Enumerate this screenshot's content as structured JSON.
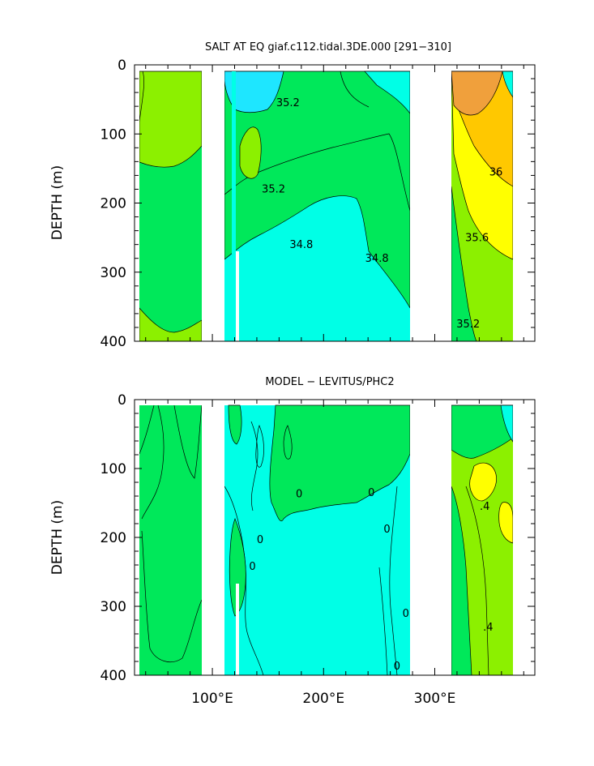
{
  "chart_data": [
    {
      "type": "heatmap",
      "title": "SALT AT EQ giaf.c112.tidal.3DE.000 [291−310]",
      "ylabel": "DEPTH (m)",
      "xlabel": "",
      "xlim": [
        30,
        390
      ],
      "ylim": [
        400,
        0
      ],
      "x_ticks": [
        100,
        200,
        300
      ],
      "x_tick_labels": [
        "100°E",
        "200°E",
        "300°E"
      ],
      "y_ticks": [
        0,
        100,
        200,
        300,
        400
      ],
      "y_tick_labels": [
        "0",
        "100",
        "200",
        "300",
        "400"
      ],
      "land_gaps": [
        [
          98,
          118
        ],
        [
          125,
          128
        ],
        [
          130,
          131
        ],
        [
          278,
          315
        ],
        [
          370,
          390
        ]
      ],
      "ocean_sections": [
        {
          "lon": [
            43,
            98
          ]
        },
        {
          "lon": [
            118,
            278
          ]
        },
        {
          "lon": [
            315,
            370
          ]
        }
      ],
      "contour_labels": [
        {
          "text": "35.2",
          "lon": 168,
          "depth": 60
        },
        {
          "text": "35.2",
          "lon": 155,
          "depth": 185
        },
        {
          "text": "34.8",
          "lon": 180,
          "depth": 265
        },
        {
          "text": "34.8",
          "lon": 248,
          "depth": 285
        },
        {
          "text": "36",
          "lon": 355,
          "depth": 160
        },
        {
          "text": "35.6",
          "lon": 338,
          "depth": 255
        },
        {
          "text": "35.2",
          "lon": 330,
          "depth": 380
        }
      ],
      "colors": {
        "fresh": "#00ffe6",
        "mid_low": "#1ee6ff",
        "mid": "#00e85a",
        "mid_high": "#8cf000",
        "high": "#ffff00",
        "higher": "#ffc800",
        "highest": "#f0a03c"
      }
    },
    {
      "type": "heatmap",
      "title": "MODEL − LEVITUS/PHC2",
      "ylabel": "DEPTH (m)",
      "xlabel": "",
      "xlim": [
        30,
        390
      ],
      "ylim": [
        400,
        0
      ],
      "x_ticks": [
        100,
        200,
        300
      ],
      "x_tick_labels": [
        "100°E",
        "200°E",
        "300°E"
      ],
      "y_ticks": [
        0,
        100,
        200,
        300,
        400
      ],
      "y_tick_labels": [
        "0",
        "100",
        "200",
        "300",
        "400"
      ],
      "land_gaps": [
        [
          98,
          118
        ],
        [
          125,
          128
        ],
        [
          130,
          131
        ],
        [
          278,
          315
        ],
        [
          370,
          390
        ]
      ],
      "contour_labels": [
        {
          "text": "0",
          "lon": 178,
          "depth": 142
        },
        {
          "text": "0",
          "lon": 143,
          "depth": 208
        },
        {
          "text": "0",
          "lon": 136,
          "depth": 247
        },
        {
          "text": "0",
          "lon": 243,
          "depth": 140
        },
        {
          "text": "0",
          "lon": 257,
          "depth": 193
        },
        {
          "text": "0",
          "lon": 274,
          "depth": 315
        },
        {
          "text": "0",
          "lon": 266,
          "depth": 392
        },
        {
          "text": ".4",
          "lon": 345,
          "depth": 160
        },
        {
          "text": ".4",
          "lon": 348,
          "depth": 335
        }
      ],
      "colors": {
        "negative": "#00ffe6",
        "zero": "#00e85a",
        "positive": "#8cf000",
        "strong_positive": "#ffff00"
      }
    }
  ]
}
